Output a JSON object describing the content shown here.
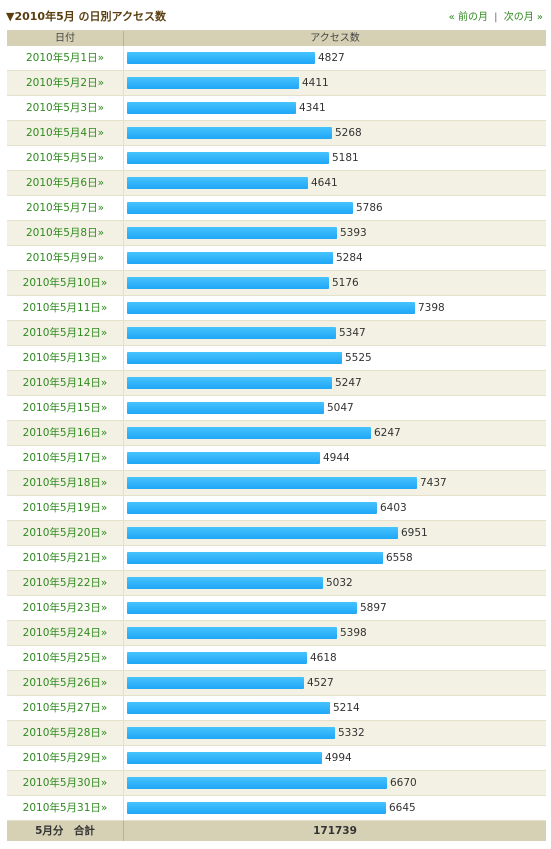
{
  "header": {
    "title": "▼2010年5月 の日別アクセス数",
    "prev_label": "« 前の月",
    "separator": "|",
    "next_label": "次の月 »"
  },
  "table": {
    "col_date": "日付",
    "col_access": "アクセス数"
  },
  "footer": {
    "label": "5月分　合計",
    "total": "171739"
  },
  "colors": {
    "bar": "#1fa6f5",
    "link": "#2f8a1f",
    "header_bg": "#d6d1b4"
  },
  "chart_data": {
    "type": "bar",
    "orientation": "horizontal",
    "categories": [
      "2010年5月1日»",
      "2010年5月2日»",
      "2010年5月3日»",
      "2010年5月4日»",
      "2010年5月5日»",
      "2010年5月6日»",
      "2010年5月7日»",
      "2010年5月8日»",
      "2010年5月9日»",
      "2010年5月10日»",
      "2010年5月11日»",
      "2010年5月12日»",
      "2010年5月13日»",
      "2010年5月14日»",
      "2010年5月15日»",
      "2010年5月16日»",
      "2010年5月17日»",
      "2010年5月18日»",
      "2010年5月19日»",
      "2010年5月20日»",
      "2010年5月21日»",
      "2010年5月22日»",
      "2010年5月23日»",
      "2010年5月24日»",
      "2010年5月25日»",
      "2010年5月26日»",
      "2010年5月27日»",
      "2010年5月28日»",
      "2010年5月29日»",
      "2010年5月30日»",
      "2010年5月31日»"
    ],
    "values": [
      4827,
      4411,
      4341,
      5268,
      5181,
      4641,
      5786,
      5393,
      5284,
      5176,
      7398,
      5347,
      5525,
      5247,
      5047,
      6247,
      4944,
      7437,
      6403,
      6951,
      6558,
      5032,
      5897,
      5398,
      4618,
      4527,
      5214,
      5332,
      4994,
      6670,
      6645
    ]
  }
}
